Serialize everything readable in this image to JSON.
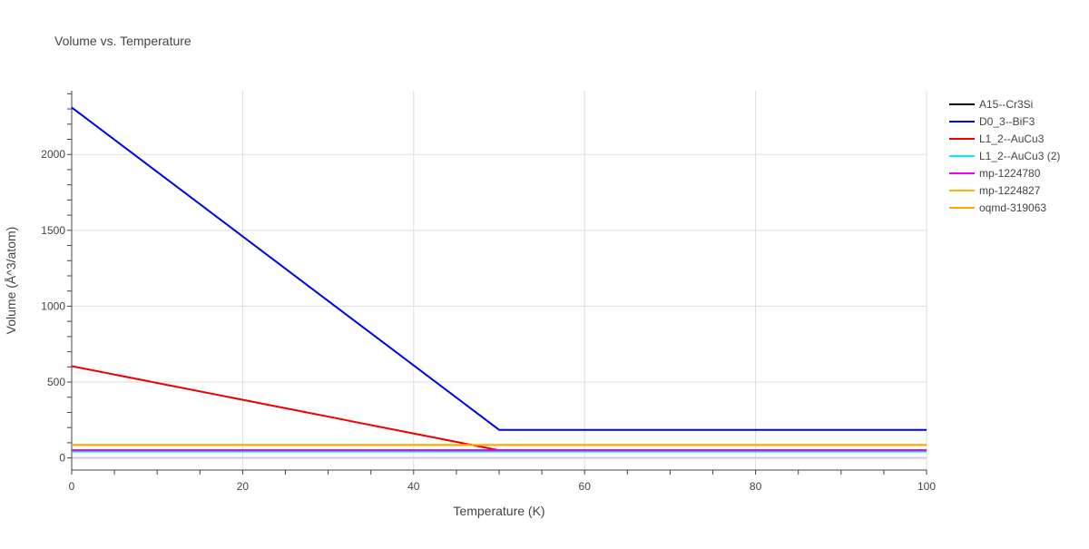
{
  "chart_data": {
    "type": "line",
    "title": "Volume vs. Temperature",
    "xlabel": "Temperature (K)",
    "ylabel": "Volume (Å^3/atom)",
    "xlim": [
      0,
      100
    ],
    "ylim": [
      -80,
      2420
    ],
    "x_ticks": [
      0,
      20,
      40,
      60,
      80,
      100
    ],
    "y_ticks": [
      0,
      500,
      1000,
      1500,
      2000
    ],
    "grid": true,
    "legend_position": "top-right",
    "series": [
      {
        "name": "A15--Cr3Si",
        "color": "#000000",
        "x": [
          0,
          100
        ],
        "y": [
          50,
          50
        ]
      },
      {
        "name": "D0_3--BiF3",
        "color": "#0000ee",
        "x": [
          0,
          50,
          100
        ],
        "y": [
          2310,
          185,
          185
        ]
      },
      {
        "name": "L1_2--AuCu3",
        "color": "#ee0000",
        "x": [
          0,
          50,
          100
        ],
        "y": [
          605,
          50,
          50
        ]
      },
      {
        "name": "L1_2--AuCu3 (2)",
        "color": "#00eeee",
        "x": [
          0,
          100
        ],
        "y": [
          42,
          42
        ]
      },
      {
        "name": "mp-1224780",
        "color": "#ee00ee",
        "x": [
          0,
          100
        ],
        "y": [
          50,
          50
        ]
      },
      {
        "name": "mp-1224827",
        "color": "#ffb400",
        "x": [
          0,
          100
        ],
        "y": [
          85,
          85
        ]
      },
      {
        "name": "oqmd-319063",
        "color": "#ffa500",
        "x": [
          0,
          100
        ],
        "y": [
          85,
          85
        ]
      }
    ]
  }
}
